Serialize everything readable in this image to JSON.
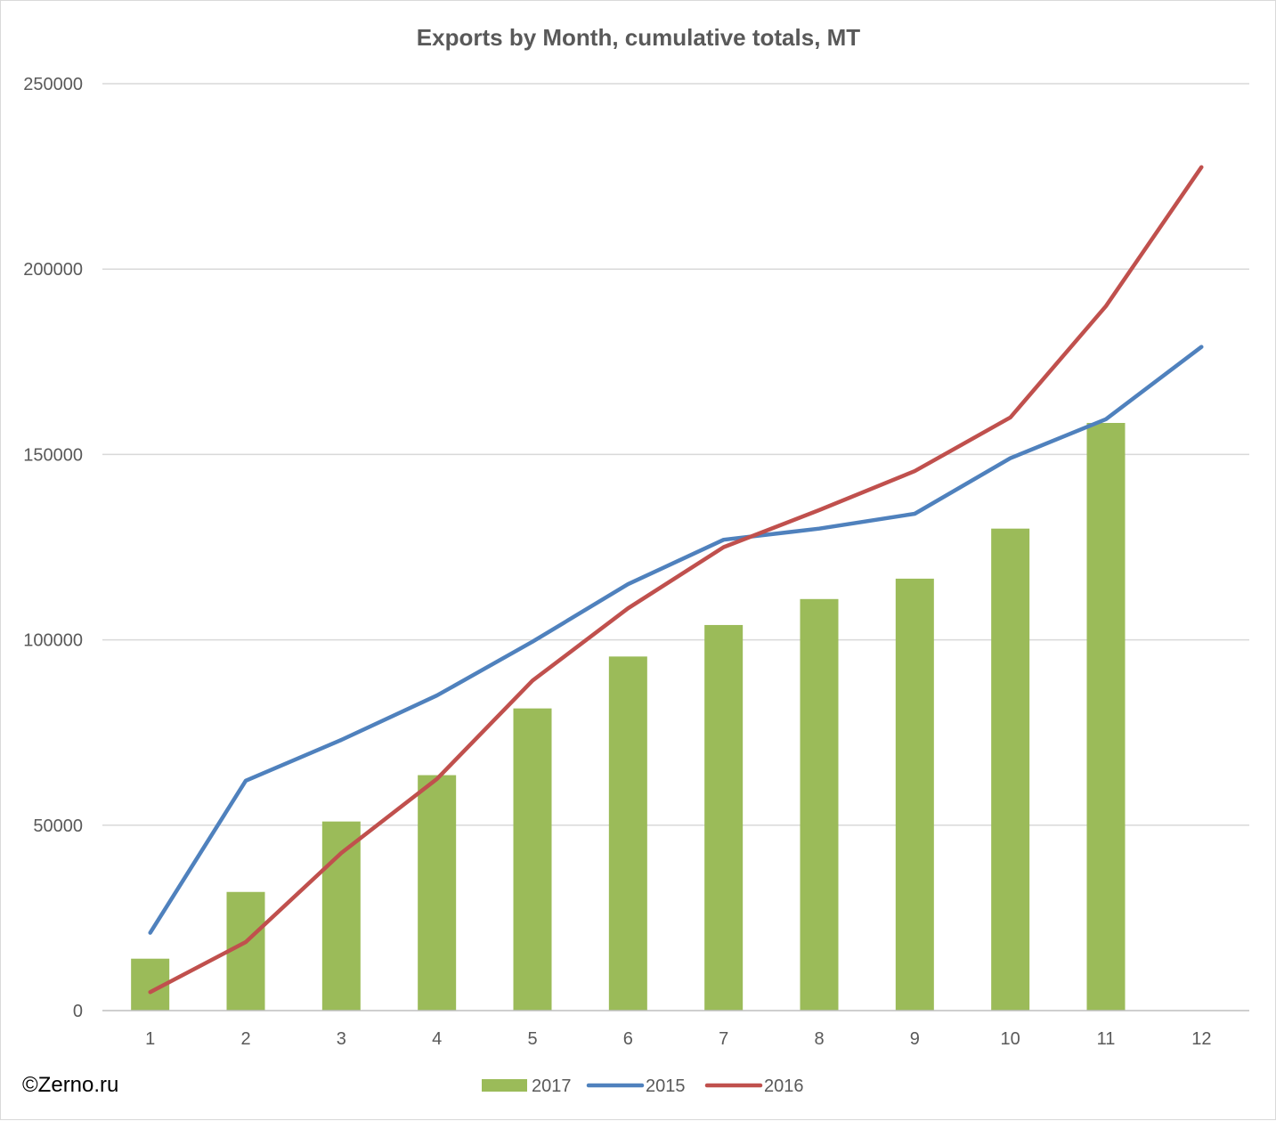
{
  "chart_data": {
    "type": "bar",
    "title": "Exports by Month, cumulative totals, MT",
    "xlabel": "",
    "ylabel": "",
    "ylim": [
      0,
      250000
    ],
    "yticks": [
      0,
      50000,
      100000,
      150000,
      200000,
      250000
    ],
    "categories": [
      "1",
      "2",
      "3",
      "4",
      "5",
      "6",
      "7",
      "8",
      "9",
      "10",
      "11",
      "12"
    ],
    "grid": true,
    "legend_position": "bottom",
    "series": [
      {
        "name": "2017",
        "type": "bar",
        "color": "#9bbb59",
        "values": [
          14000,
          32000,
          51000,
          63500,
          81500,
          95500,
          104000,
          111000,
          116500,
          130000,
          158500,
          null
        ]
      },
      {
        "name": "2015",
        "type": "line",
        "color": "#4f81bd",
        "values": [
          21000,
          62000,
          73000,
          85000,
          99500,
          115000,
          127000,
          130000,
          134000,
          149000,
          159500,
          179000
        ]
      },
      {
        "name": "2016",
        "type": "line",
        "color": "#c0504d",
        "values": [
          5000,
          18500,
          42500,
          62500,
          89000,
          108500,
          125000,
          135000,
          145500,
          160000,
          190000,
          227500
        ]
      }
    ]
  },
  "watermark": "©Zerno.ru"
}
